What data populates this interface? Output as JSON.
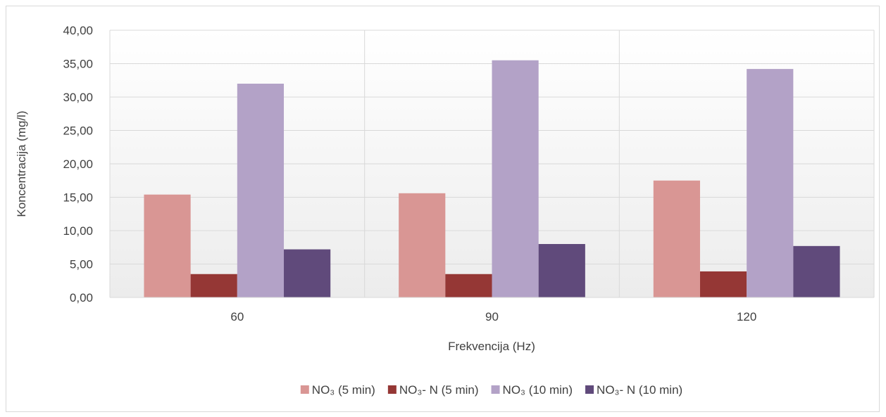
{
  "chart_data": {
    "type": "bar",
    "categories": [
      "60",
      "90",
      "120"
    ],
    "series": [
      {
        "name": "NO₃ (5 min)",
        "values": [
          15.4,
          15.6,
          17.5
        ],
        "color": "#d99694"
      },
      {
        "name": "NO₃- N (5 min)",
        "values": [
          3.5,
          3.5,
          3.9
        ],
        "color": "#953735"
      },
      {
        "name": "NO₃ (10 min)",
        "values": [
          32.0,
          35.5,
          34.2
        ],
        "color": "#b3a2c7"
      },
      {
        "name": "NO₃- N (10 min)",
        "values": [
          7.2,
          8.0,
          7.7
        ],
        "color": "#604a7b"
      }
    ],
    "xlabel": "Frekvencija (Hz)",
    "ylabel": "Koncentracija (mg/l)",
    "ylim": [
      0,
      40
    ],
    "yticks": [
      "0,00",
      "5,00",
      "10,00",
      "15,00",
      "20,00",
      "25,00",
      "30,00",
      "35,00",
      "40,00"
    ],
    "grid": true,
    "legend_position": "bottom"
  }
}
